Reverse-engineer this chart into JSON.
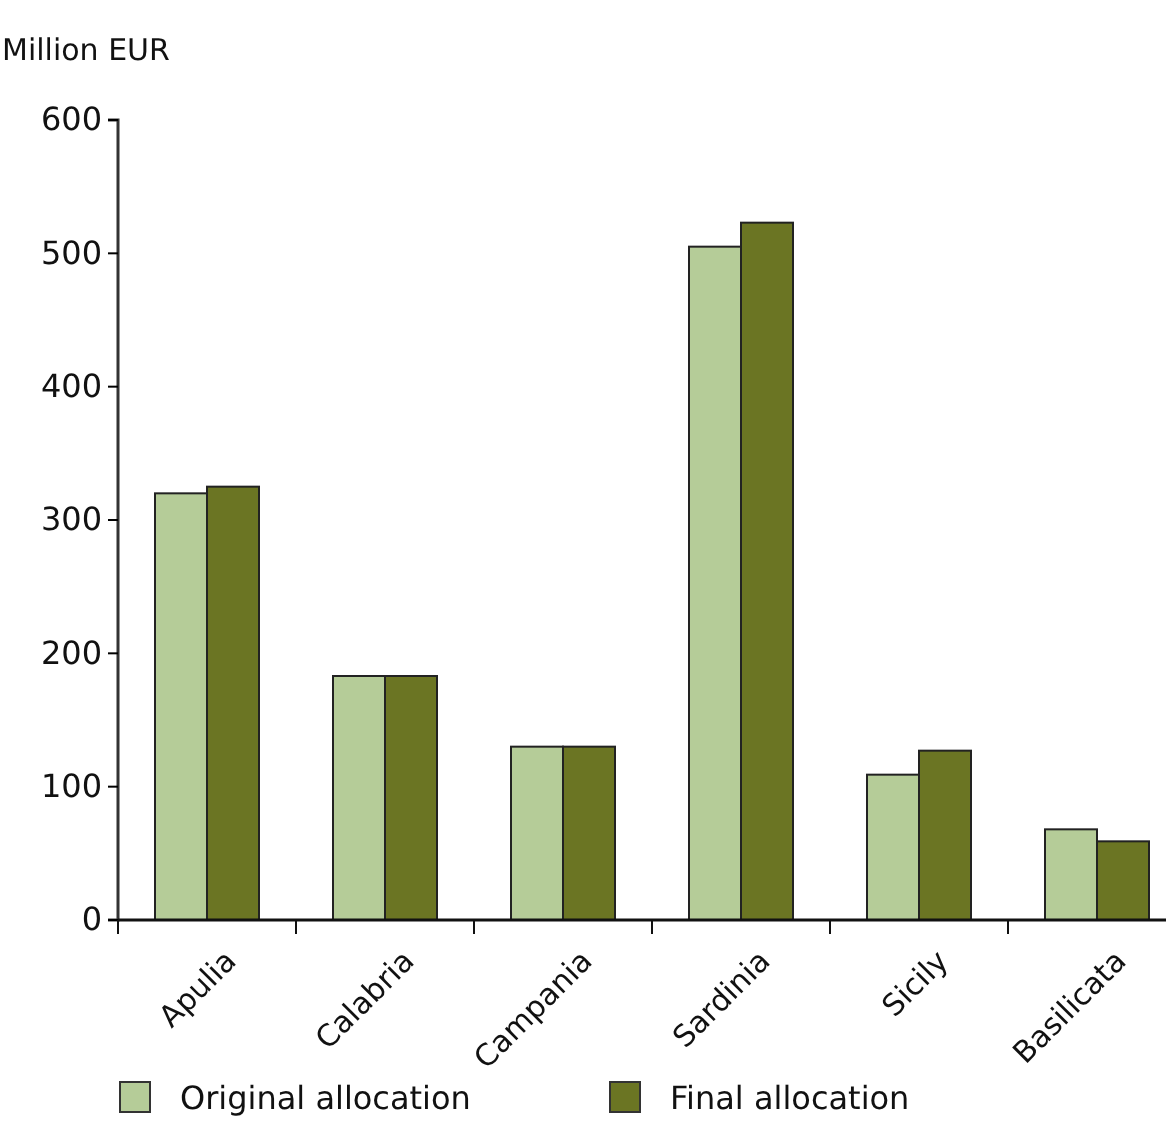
{
  "chart_data": {
    "type": "bar",
    "ylabel": "Million EUR",
    "categories": [
      "Apulia",
      "Calabria",
      "Campania",
      "Sardinia",
      "Sicily",
      "Basilicata"
    ],
    "series": [
      {
        "name": "Original allocation",
        "color": "#b5cc98",
        "values": [
          320,
          183,
          130,
          505,
          109,
          68
        ]
      },
      {
        "name": "Final allocation",
        "color": "#6b7523",
        "values": [
          325,
          183,
          130,
          523,
          127,
          59
        ]
      }
    ],
    "ylim": [
      0,
      600
    ],
    "yticks": [
      0,
      100,
      200,
      300,
      400,
      500,
      600
    ],
    "grid": false,
    "legend": "bottom"
  }
}
